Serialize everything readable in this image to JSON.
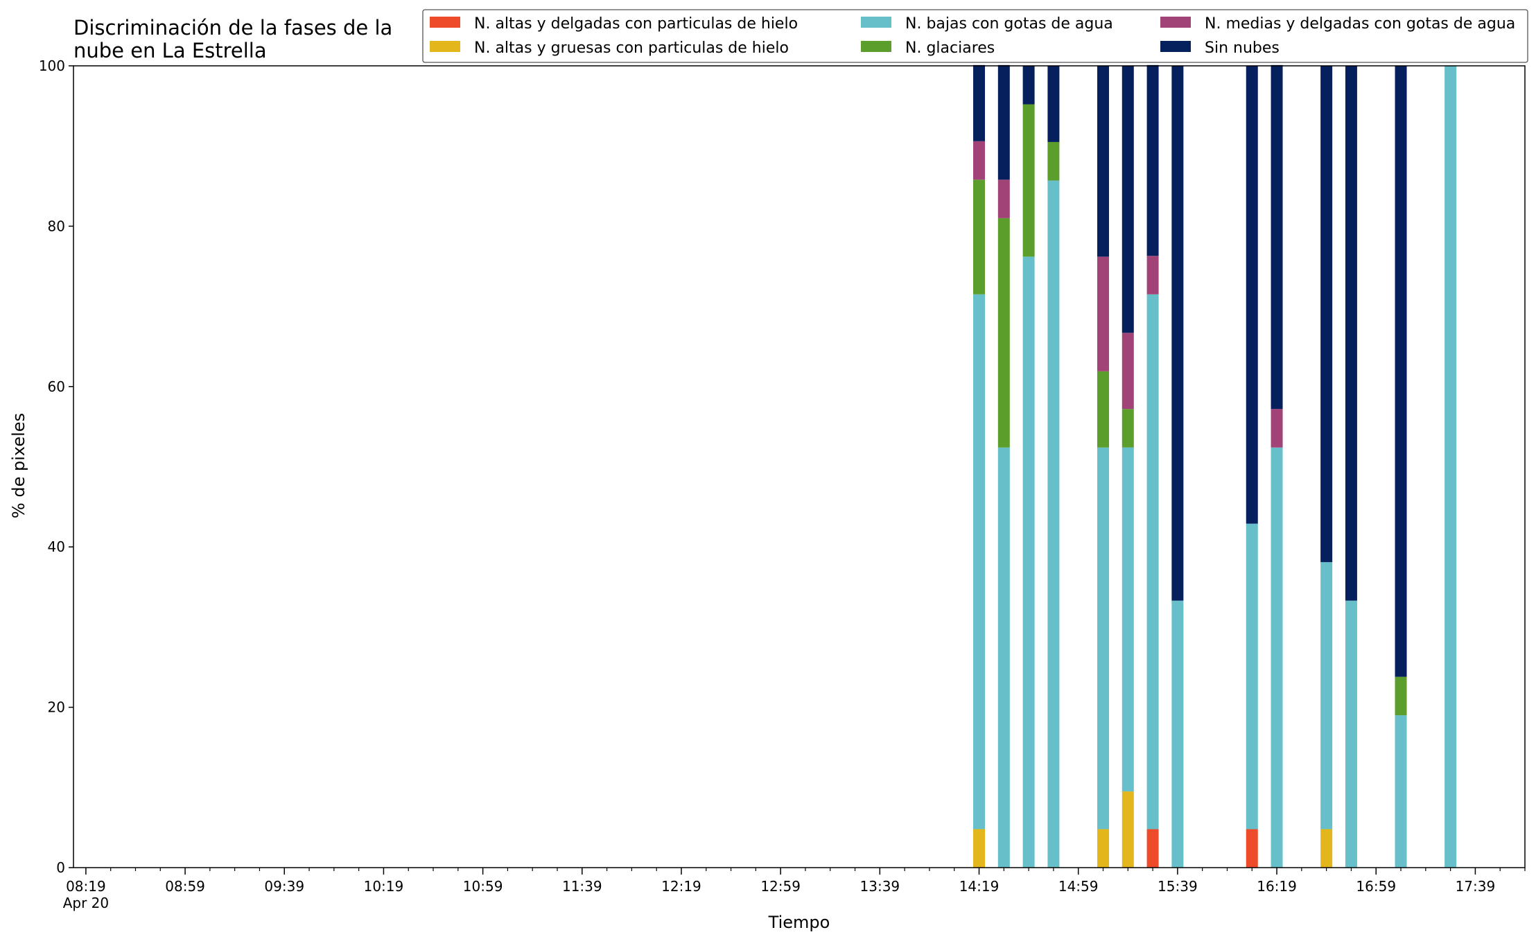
{
  "chart_data": {
    "type": "bar",
    "stacked": true,
    "title_lines": [
      "Discriminación de la fases de la",
      "nube en La Estrella"
    ],
    "xlabel": "Tiempo",
    "ylabel": "% de pixeles",
    "ylim": [
      0,
      100
    ],
    "yticks": [
      "0",
      "20",
      "40",
      "60",
      "80",
      "100"
    ],
    "xlim": [
      "08:14",
      "17:59"
    ],
    "xticks": [
      {
        "time": "08:19",
        "label": "08:19",
        "sublabel": "Apr 20"
      },
      {
        "time": "08:59",
        "label": "08:59"
      },
      {
        "time": "09:39",
        "label": "09:39"
      },
      {
        "time": "10:19",
        "label": "10:19"
      },
      {
        "time": "10:59",
        "label": "10:59"
      },
      {
        "time": "11:39",
        "label": "11:39"
      },
      {
        "time": "12:19",
        "label": "12:19"
      },
      {
        "time": "12:59",
        "label": "12:59"
      },
      {
        "time": "13:39",
        "label": "13:39"
      },
      {
        "time": "14:19",
        "label": "14:19"
      },
      {
        "time": "14:59",
        "label": "14:59"
      },
      {
        "time": "15:39",
        "label": "15:39"
      },
      {
        "time": "16:19",
        "label": "16:19"
      },
      {
        "time": "16:59",
        "label": "16:59"
      },
      {
        "time": "17:39",
        "label": "17:39"
      }
    ],
    "minor_tick_interval_minutes": 10,
    "legend_position": "upper right",
    "grid": false,
    "series": [
      {
        "name": "N. altas y delgadas con particulas de hielo",
        "color": "#ee4b2b"
      },
      {
        "name": "N. altas y gruesas con particulas de hielo",
        "color": "#e3b71c"
      },
      {
        "name": "N. bajas con gotas de agua",
        "color": "#66bfc9"
      },
      {
        "name": "N. glaciares",
        "color": "#5b9e2c"
      },
      {
        "name": "N. medias y delgadas con gotas de agua",
        "color": "#a14377"
      },
      {
        "name": "Sin nubes",
        "color": "#061f5d"
      }
    ],
    "bars": [
      {
        "time": "14:19",
        "values": [
          0,
          4.8,
          66.7,
          14.3,
          4.8,
          9.5
        ]
      },
      {
        "time": "14:29",
        "values": [
          0,
          0,
          52.4,
          28.6,
          4.8,
          14.3
        ]
      },
      {
        "time": "14:39",
        "values": [
          0,
          0,
          76.2,
          19.0,
          0,
          4.8
        ]
      },
      {
        "time": "14:49",
        "values": [
          0,
          0,
          85.7,
          4.8,
          0,
          9.5
        ]
      },
      {
        "time": "15:09",
        "values": [
          0,
          4.8,
          47.6,
          9.5,
          14.3,
          23.8
        ]
      },
      {
        "time": "15:19",
        "values": [
          0,
          9.5,
          42.9,
          4.8,
          9.5,
          33.3
        ]
      },
      {
        "time": "15:29",
        "values": [
          4.8,
          0,
          66.7,
          0,
          4.8,
          23.8
        ]
      },
      {
        "time": "15:39",
        "values": [
          0,
          0,
          33.3,
          0,
          0,
          66.7
        ]
      },
      {
        "time": "16:09",
        "values": [
          4.8,
          0,
          38.1,
          0,
          0,
          57.1
        ]
      },
      {
        "time": "16:19",
        "values": [
          0,
          0,
          52.4,
          0,
          4.8,
          42.9
        ]
      },
      {
        "time": "16:39",
        "values": [
          0,
          4.8,
          33.3,
          0,
          0,
          61.9
        ]
      },
      {
        "time": "16:49",
        "values": [
          0,
          0,
          33.3,
          0,
          0,
          66.7
        ]
      },
      {
        "time": "17:09",
        "values": [
          0,
          0,
          19.0,
          4.8,
          0,
          76.2
        ]
      },
      {
        "time": "17:29",
        "values": [
          0,
          0,
          100,
          0,
          0,
          0
        ]
      }
    ]
  }
}
